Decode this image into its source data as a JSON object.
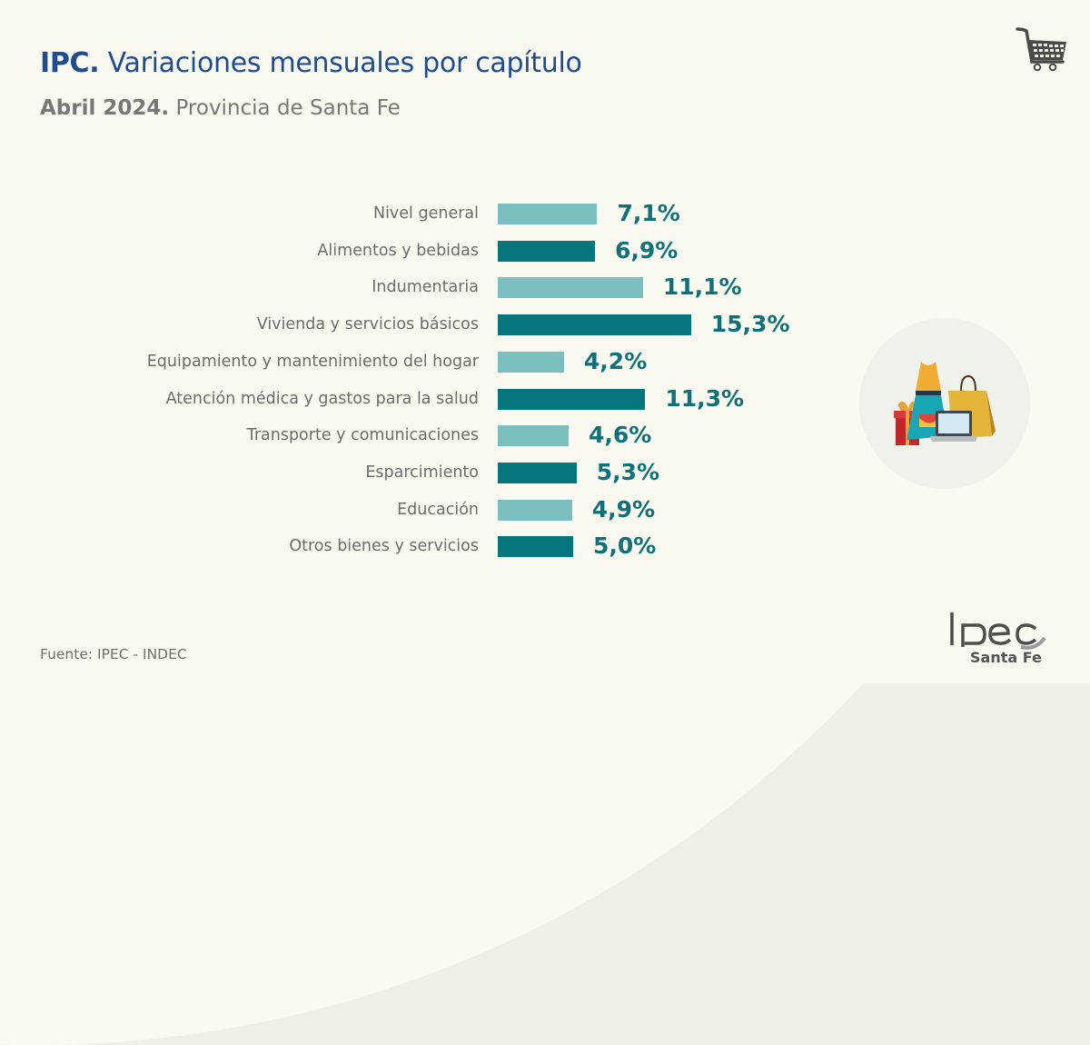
{
  "header": {
    "title_bold": "IPC.",
    "title_rest": " Variaciones mensuales por capítulo",
    "subtitle_bold": "Abril 2024.",
    "subtitle_rest": " Provincia de Santa Fe"
  },
  "icons": {
    "top_right": "shopping-cart-icon",
    "illustration": "shopping-illustration"
  },
  "footer": {
    "source": "Fuente: IPEC - INDEC",
    "logo_text": "Ipec",
    "logo_subtitle": "Santa Fe"
  },
  "colors": {
    "light_bar": "#7bbfc1",
    "dark_bar": "#07757c",
    "value_text": "#0e7079",
    "title": "#1f4c8f"
  },
  "chart_data": {
    "type": "bar",
    "orientation": "horizontal",
    "title": "IPC. Variaciones mensuales por capítulo",
    "subtitle": "Abril 2024. Provincia de Santa Fe",
    "xlabel": "",
    "ylabel": "",
    "unit": "%",
    "grid": false,
    "legend": "none",
    "xlim": [
      0,
      16
    ],
    "categories": [
      "Nivel general",
      "Alimentos y bebidas",
      "Indumentaria",
      "Vivienda y servicios básicos",
      "Equipamiento y mantenimiento del hogar",
      "Atención médica y gastos para la salud",
      "Transporte y comunicaciones",
      "Esparcimiento",
      "Educación",
      "Otros bienes y servicios"
    ],
    "values": [
      7.1,
      6.9,
      11.1,
      15.3,
      4.2,
      11.3,
      4.6,
      5.3,
      4.9,
      5.0
    ],
    "value_labels": [
      "7,1%",
      "6,9%",
      "11,1%",
      "15,3%",
      "4,2%",
      "11,3%",
      "4,6%",
      "5,3%",
      "4,9%",
      "5,0%"
    ],
    "bar_shades": [
      "light",
      "dark",
      "light",
      "dark",
      "light",
      "dark",
      "light",
      "dark",
      "light",
      "dark"
    ]
  }
}
